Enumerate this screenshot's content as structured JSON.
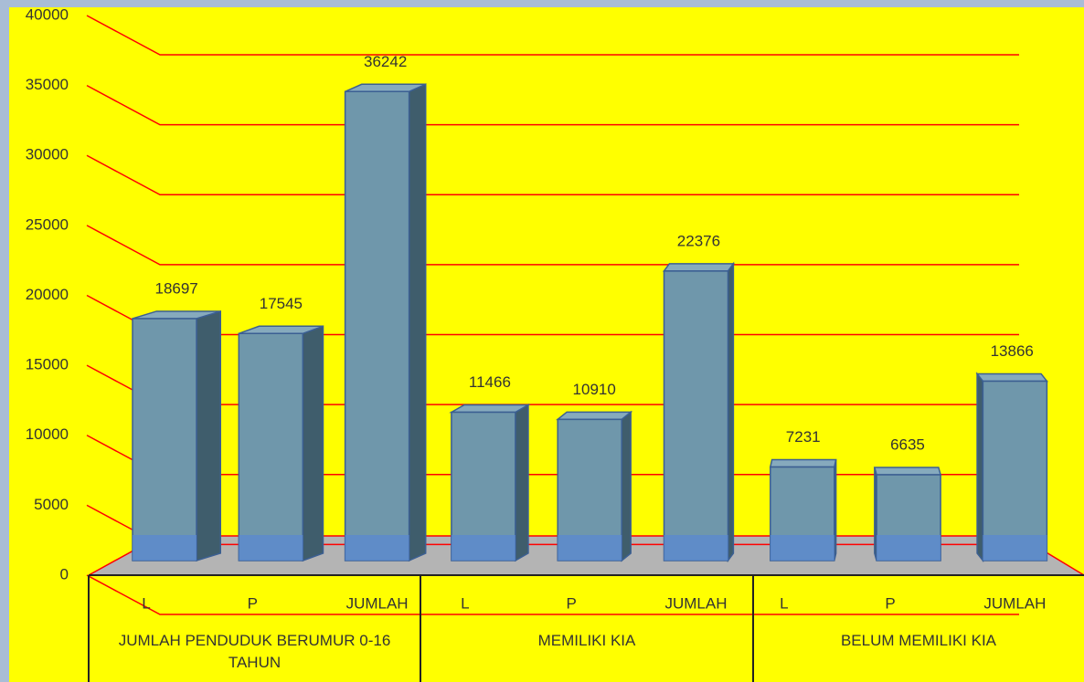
{
  "chart_data": {
    "type": "bar",
    "categories": [
      "L",
      "P",
      "JUMLAH",
      "L",
      "P",
      "JUMLAH",
      "L",
      "P",
      "JUMLAH"
    ],
    "groups": [
      "JUMLAH PENDUDUK BERUMUR 0-16 TAHUN",
      "MEMILIKI KIA",
      "BELUM MEMILIKI KIA"
    ],
    "values": [
      18697,
      17545,
      36242,
      11466,
      10910,
      22376,
      7231,
      6635,
      13866
    ],
    "color": "#6f97ab",
    "ylim": [
      0,
      40000
    ],
    "yticks": [
      0,
      5000,
      10000,
      15000,
      20000,
      25000,
      30000,
      35000,
      40000
    ],
    "grid": true,
    "grid_color": "#ff0000"
  }
}
